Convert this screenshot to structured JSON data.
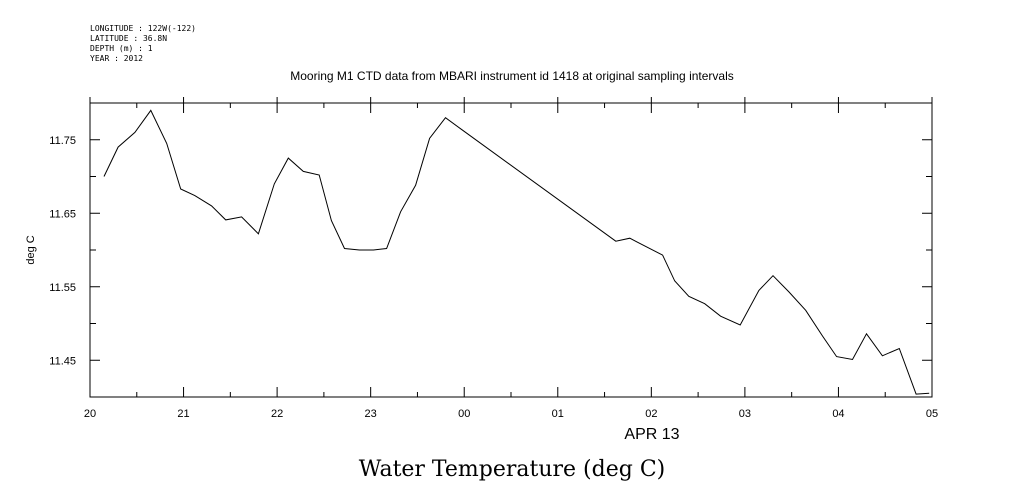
{
  "header": {
    "longitude": "LONGITUDE : 122W(-122)",
    "latitude": "LATITUDE : 36.8N",
    "depth": "DEPTH (m) : 1",
    "year": "YEAR : 2012"
  },
  "chart_data": {
    "type": "line",
    "title": "Mooring M1 CTD data from MBARI instrument id 1418 at original sampling intervals",
    "ylabel": "deg C",
    "xlabel": "APR 13",
    "footer_title": "Water Temperature (deg C)",
    "xlim": [
      20,
      29
    ],
    "ylim": [
      11.4,
      11.8
    ],
    "x_ticks": [
      20,
      21,
      22,
      23,
      24,
      25,
      26,
      27,
      28,
      29
    ],
    "x_tick_labels": [
      "20",
      "21",
      "22",
      "23",
      "00",
      "01",
      "02",
      "03",
      "04",
      "05"
    ],
    "y_ticks": [
      11.45,
      11.55,
      11.65,
      11.75
    ],
    "y_tick_labels": [
      "11.45",
      "11.55",
      "11.65",
      "11.75"
    ],
    "series": [
      {
        "x": [
          20.15,
          20.3,
          20.48,
          20.65,
          20.82,
          20.97,
          21.12,
          21.3,
          21.45,
          21.62,
          21.8,
          21.97,
          22.12,
          22.28,
          22.45,
          22.58,
          22.72,
          22.88,
          23.03,
          23.17,
          23.32,
          23.48,
          23.63,
          23.8,
          23.96,
          25.62,
          25.77,
          26.12,
          26.25,
          26.4,
          26.57,
          26.74,
          26.95,
          27.15,
          27.3,
          27.47,
          27.65,
          27.83,
          27.98,
          28.15,
          28.3,
          28.47,
          28.65,
          28.83,
          28.97
        ],
        "y": [
          11.7,
          11.74,
          11.76,
          11.79,
          11.745,
          11.683,
          11.674,
          11.66,
          11.641,
          11.645,
          11.622,
          11.69,
          11.725,
          11.707,
          11.702,
          11.64,
          11.602,
          11.6,
          11.6,
          11.602,
          11.652,
          11.688,
          11.752,
          11.78,
          11.765,
          11.612,
          11.616,
          11.593,
          11.558,
          11.537,
          11.527,
          11.51,
          11.498,
          11.545,
          11.565,
          11.543,
          11.518,
          11.483,
          11.455,
          11.451,
          11.486,
          11.456,
          11.466,
          11.404,
          11.405
        ]
      }
    ],
    "grid": false,
    "line_color": "#000000"
  }
}
